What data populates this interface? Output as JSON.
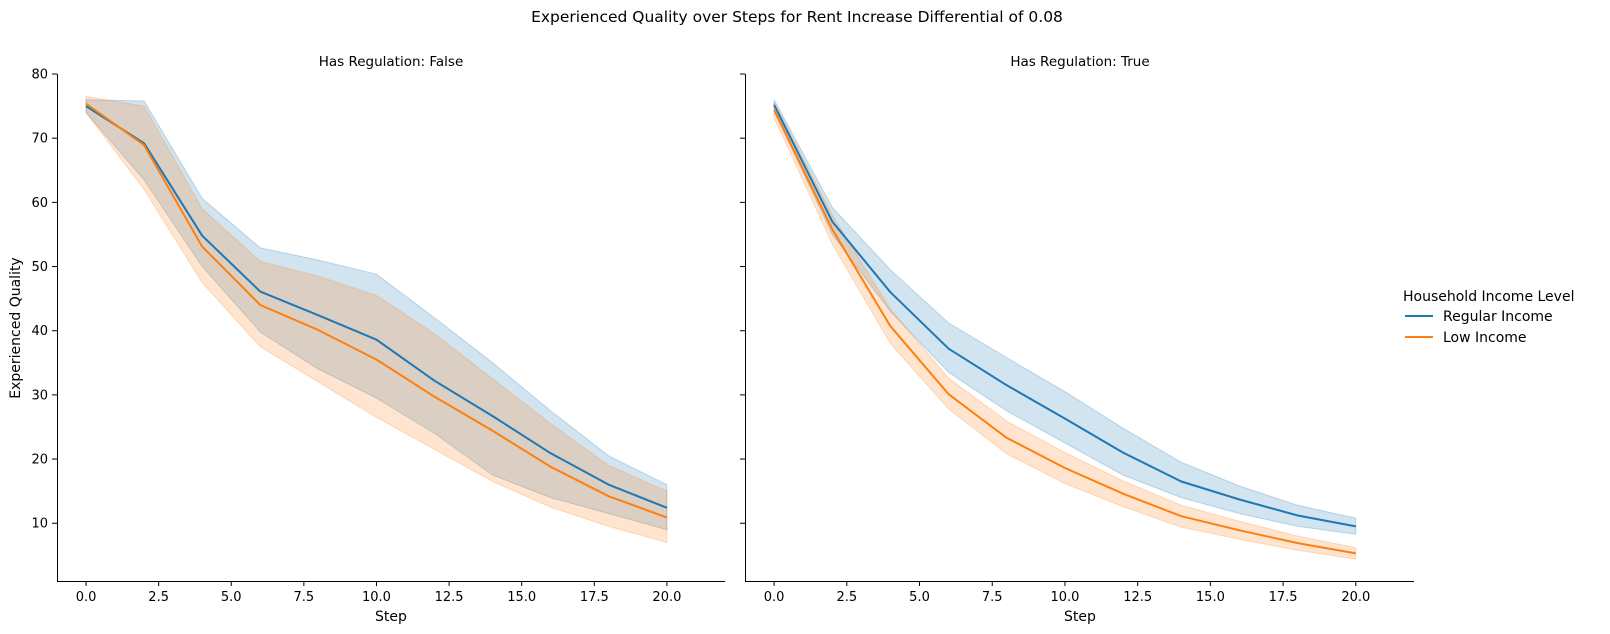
{
  "figure": {
    "title": "Experienced Quality over Steps for Rent Increase Differential of 0.08"
  },
  "legend": {
    "title": "Household Income Level",
    "position": "right",
    "entries": [
      {
        "label": "Regular Income",
        "color": "#1f77b4"
      },
      {
        "label": "Low Income",
        "color": "#ff7f0e"
      }
    ]
  },
  "chart_data": {
    "type": "line",
    "shared_y": true,
    "xlabel": "Step",
    "ylabel": "Experienced Quality",
    "xlim": [
      -1,
      22
    ],
    "ylim": [
      1,
      80
    ],
    "xticks": [
      "0.0",
      "2.5",
      "5.0",
      "7.5",
      "10.0",
      "12.5",
      "15.0",
      "17.5",
      "20.0"
    ],
    "yticks": [
      "10",
      "20",
      "30",
      "40",
      "50",
      "60",
      "70",
      "80"
    ],
    "grid": false,
    "panels": [
      {
        "title": "Has Regulation: False",
        "x": [
          0,
          2,
          4,
          6,
          8,
          10,
          12,
          14,
          16,
          18,
          20
        ],
        "series": [
          {
            "name": "Regular Income",
            "color": "#1f77b4",
            "values": [
              75.0,
              69.2,
              54.8,
              46.1,
              42.4,
              38.6,
              32.2,
              26.7,
              20.9,
              16.0,
              12.4
            ],
            "ci_low": [
              74.0,
              63.5,
              50.0,
              39.8,
              34.0,
              29.5,
              24.0,
              17.5,
              14.0,
              11.5,
              9.0
            ],
            "ci_high": [
              76.0,
              75.8,
              60.6,
              52.9,
              51.0,
              48.8,
              42.0,
              35.0,
              27.5,
              20.5,
              16.0
            ]
          },
          {
            "name": "Low Income",
            "color": "#ff7f0e",
            "values": [
              75.4,
              68.9,
              53.1,
              44.0,
              40.1,
              35.5,
              29.7,
              24.4,
              18.8,
              14.2,
              10.9
            ],
            "ci_low": [
              74.0,
              62.0,
              47.5,
              37.5,
              32.0,
              26.5,
              21.5,
              16.5,
              12.5,
              9.5,
              7.0
            ],
            "ci_high": [
              76.5,
              75.0,
              59.0,
              50.8,
              48.5,
              45.5,
              39.5,
              32.5,
              25.5,
              19.0,
              15.0
            ]
          }
        ]
      },
      {
        "title": "Has Regulation: True",
        "x": [
          0,
          2,
          4,
          6,
          8,
          10,
          12,
          14,
          16,
          18,
          20
        ],
        "series": [
          {
            "name": "Regular Income",
            "color": "#1f77b4",
            "values": [
              75.2,
              57.0,
              46.0,
              37.2,
              31.5,
              26.3,
              21.0,
              16.5,
              13.7,
              11.2,
              9.5
            ],
            "ci_low": [
              74.2,
              55.0,
              43.0,
              33.5,
              27.5,
              22.5,
              17.5,
              14.0,
              11.5,
              9.5,
              8.3
            ],
            "ci_high": [
              76.0,
              59.2,
              49.5,
              41.2,
              35.8,
              30.5,
              24.8,
              19.5,
              15.8,
              12.8,
              10.8
            ]
          },
          {
            "name": "Low Income",
            "color": "#ff7f0e",
            "values": [
              74.4,
              55.8,
              40.7,
              30.1,
              23.3,
              18.6,
              14.6,
              11.1,
              8.9,
              6.9,
              5.3
            ],
            "ci_low": [
              73.2,
              53.5,
              38.0,
              27.8,
              20.8,
              16.2,
              12.6,
              9.4,
              7.5,
              5.8,
              4.4
            ],
            "ci_high": [
              75.6,
              58.0,
              43.4,
              32.6,
              25.9,
              21.0,
              16.6,
              12.8,
              10.3,
              8.0,
              6.2
            ]
          }
        ]
      }
    ]
  }
}
